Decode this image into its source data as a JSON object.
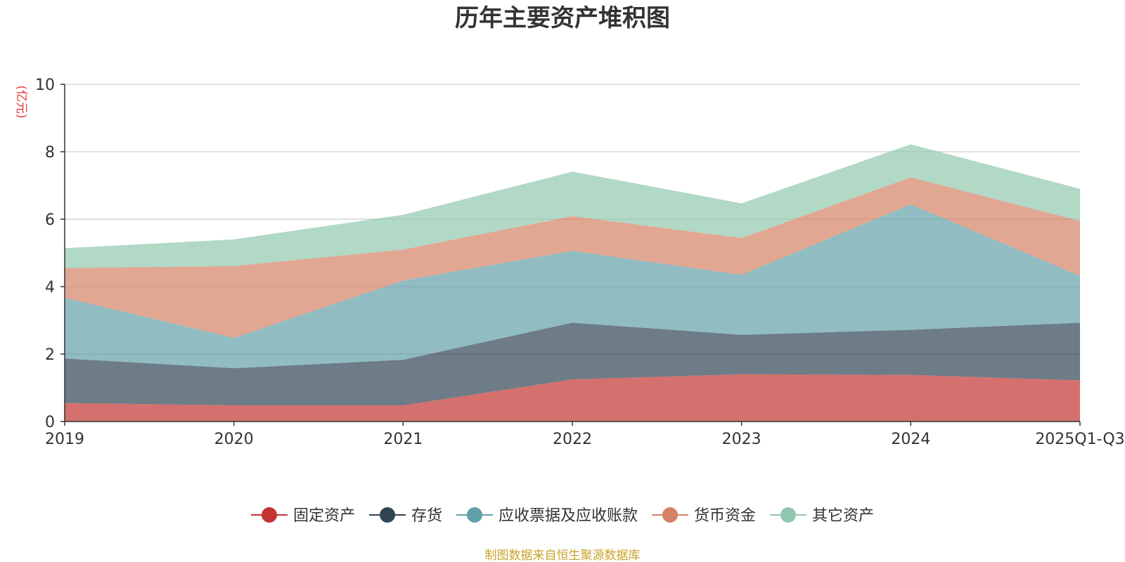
{
  "chart_data": {
    "type": "area",
    "stacked": true,
    "title": "历年主要资产堆积图",
    "ylabel": "(亿元)",
    "xlabel": "",
    "ylim": [
      0,
      10
    ],
    "yticks": [
      "0",
      "2",
      "4",
      "6",
      "8",
      "10"
    ],
    "ytick_values": [
      0,
      2,
      4,
      6,
      8,
      10
    ],
    "categories": [
      "2019",
      "2020",
      "2021",
      "2022",
      "2023",
      "2024",
      "2025Q1-Q3"
    ],
    "series": [
      {
        "name": "固定资产",
        "color": "#c23531",
        "values": [
          0.55,
          0.48,
          0.48,
          1.25,
          1.4,
          1.38,
          1.22
        ]
      },
      {
        "name": "存货",
        "color": "#2f4554",
        "values": [
          1.32,
          1.1,
          1.35,
          1.68,
          1.17,
          1.34,
          1.71
        ]
      },
      {
        "name": "应收票据及应收账款",
        "color": "#61a0a8",
        "values": [
          1.8,
          0.9,
          2.35,
          2.13,
          1.78,
          3.72,
          1.39
        ]
      },
      {
        "name": "货币资金",
        "color": "#d48265",
        "values": [
          0.88,
          2.13,
          0.92,
          1.03,
          1.09,
          0.8,
          1.63
        ]
      },
      {
        "name": "其它资产",
        "color": "#91c7ae",
        "values": [
          0.59,
          0.79,
          1.03,
          1.32,
          1.03,
          0.98,
          0.95
        ]
      }
    ],
    "legend_position": "bottom-center",
    "grid": true
  },
  "footer": "制图数据来自恒生聚源数据库"
}
